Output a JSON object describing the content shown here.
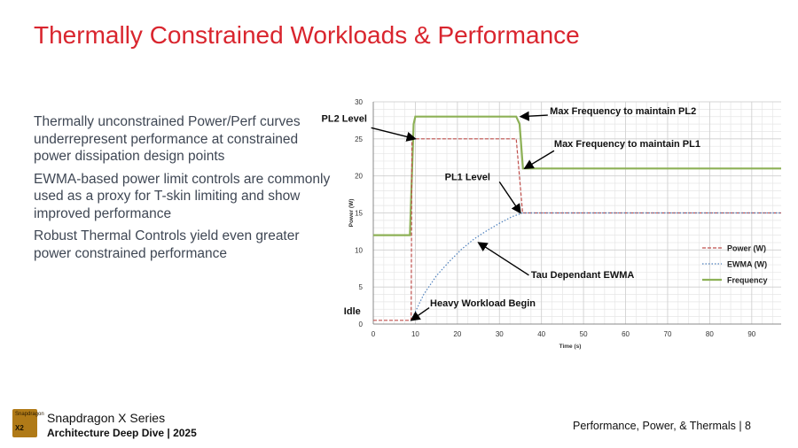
{
  "slide": {
    "title": "Thermally Constrained Workloads & Performance",
    "bullets": [
      "Thermally unconstrained Power/Perf curves underrepresent performance at constrained power dissipation design points",
      "EWMA-based power limit controls are commonly used as a proxy for T-skin limiting and show improved performance",
      "Robust Thermal Controls yield even greater power constrained performance"
    ]
  },
  "footer": {
    "logo_text": "Snapdragon",
    "logo_series": "X2",
    "brand_line1": "Snapdragon X Series",
    "brand_line2": "Architecture Deep Dive | 2025",
    "section": "Performance, Power, & Thermals | 8"
  },
  "colors": {
    "accent": "#d9252e",
    "power": "#c0504d",
    "ewma": "#4f81bd",
    "frequency": "#8db156"
  },
  "chart_data": {
    "type": "line",
    "xlabel": "Time (s)",
    "ylabel": "Power (W)",
    "xlim": [
      0,
      97
    ],
    "ylim": [
      0,
      30
    ],
    "xticks": [
      0,
      10,
      20,
      30,
      40,
      50,
      60,
      70,
      80,
      90
    ],
    "yticks": [
      0,
      5,
      10,
      15,
      20,
      25,
      30
    ],
    "grid": true,
    "legend_position": "right",
    "series": [
      {
        "name": "Power (W)",
        "style": "dashed",
        "color": "#c0504d",
        "x": [
          0,
          9,
          9.2,
          10,
          34,
          35.5,
          97
        ],
        "y": [
          0.5,
          0.5,
          25,
          25,
          25,
          15,
          15
        ]
      },
      {
        "name": "EWMA (W)",
        "style": "dotted",
        "color": "#4f81bd",
        "x": [
          9,
          12,
          15,
          18,
          21,
          24,
          27,
          30,
          33,
          35.5,
          97
        ],
        "y": [
          0.5,
          4,
          6.5,
          8.4,
          10.1,
          11.5,
          12.6,
          13.6,
          14.5,
          15,
          15
        ]
      },
      {
        "name": "Frequency",
        "style": "solid",
        "color": "#8db156",
        "x": [
          0,
          8.7,
          9.6,
          10,
          34,
          34.8,
          35.6,
          97
        ],
        "y": [
          12,
          12,
          27,
          28,
          28,
          27,
          21,
          21
        ]
      }
    ],
    "annotations": [
      {
        "text": "PL2 Level",
        "bold": true,
        "point": [
          10,
          25
        ]
      },
      {
        "text": "Max Frequency to maintain PL2",
        "bold": true,
        "point": [
          35,
          28
        ]
      },
      {
        "text": "Max Frequency to maintain PL1",
        "bold": true,
        "point": [
          36,
          21
        ]
      },
      {
        "text": "PL1 Level",
        "bold": true,
        "point": [
          35,
          15
        ]
      },
      {
        "text": "Tau Dependant EWMA",
        "bold": true,
        "point": [
          25,
          11
        ]
      },
      {
        "text": "Idle",
        "bold": true,
        "point": null
      },
      {
        "text": "Heavy Workload Begin",
        "bold": true,
        "point": [
          9,
          0.5
        ]
      }
    ]
  }
}
